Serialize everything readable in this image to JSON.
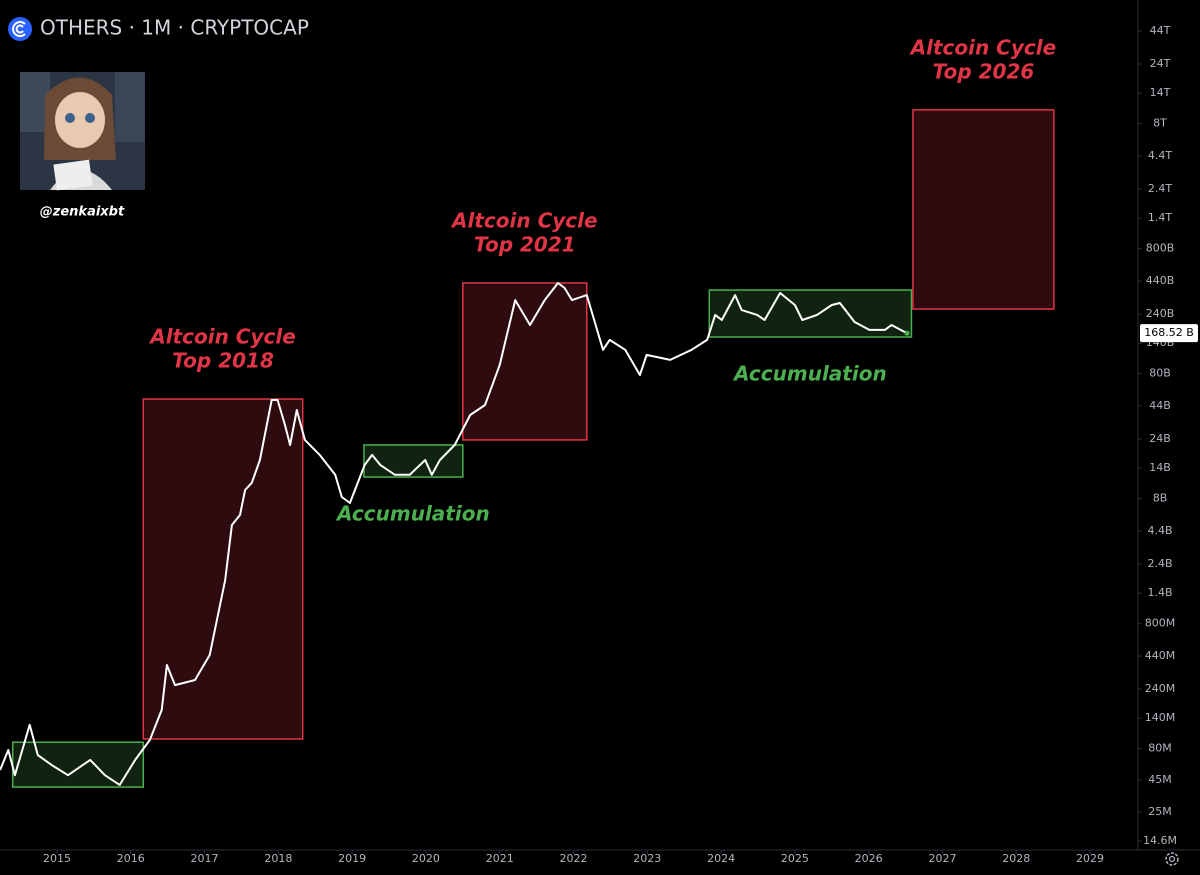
{
  "chart_data": {
    "type": "line",
    "title": "OTHERS · 1M · CRYPTOCAP",
    "author": "@zenkaixbt",
    "color": "#ffffff",
    "log_y": true,
    "xlim": [
      2014.228,
      2029.65
    ],
    "ylim": [
      12360000,
      78000000000000
    ],
    "xticks": [
      2015,
      2016,
      2017,
      2018,
      2019,
      2020,
      2021,
      2022,
      2023,
      2024,
      2025,
      2026,
      2027,
      2028,
      2029
    ],
    "yticks": [
      {
        "value": 14600000,
        "label": "14.6M"
      },
      {
        "value": 25000000,
        "label": "25M"
      },
      {
        "value": 45000000,
        "label": "45M"
      },
      {
        "value": 80000000,
        "label": "80M"
      },
      {
        "value": 140000000,
        "label": "140M"
      },
      {
        "value": 240000000,
        "label": "240M"
      },
      {
        "value": 440000000,
        "label": "440M"
      },
      {
        "value": 800000000,
        "label": "800M"
      },
      {
        "value": 1400000000,
        "label": "1.4B"
      },
      {
        "value": 2400000000,
        "label": "2.4B"
      },
      {
        "value": 4400000000,
        "label": "4.4B"
      },
      {
        "value": 8000000000,
        "label": "8B"
      },
      {
        "value": 14000000000,
        "label": "14B"
      },
      {
        "value": 24000000000,
        "label": "24B"
      },
      {
        "value": 44000000000,
        "label": "44B"
      },
      {
        "value": 80000000000,
        "label": "80B"
      },
      {
        "value": 140000000000,
        "label": "140B"
      },
      {
        "value": 240000000000,
        "label": "240B"
      },
      {
        "value": 440000000000,
        "label": "440B"
      },
      {
        "value": 800000000000,
        "label": "800B"
      },
      {
        "value": 1400000000000,
        "label": "1.4T"
      },
      {
        "value": 2400000000000,
        "label": "2.4T"
      },
      {
        "value": 4400000000000,
        "label": "4.4T"
      },
      {
        "value": 8000000000000,
        "label": "8T"
      },
      {
        "value": 14000000000000,
        "label": "14T"
      },
      {
        "value": 24000000000000,
        "label": "24T"
      },
      {
        "value": 44000000000000,
        "label": "44T"
      }
    ],
    "x": [
      2014.23,
      2014.34,
      2014.43,
      2014.63,
      2014.74,
      2014.93,
      2015.15,
      2015.45,
      2015.65,
      2015.85,
      2016.06,
      2016.26,
      2016.42,
      2016.49,
      2016.6,
      2016.87,
      2017.07,
      2017.28,
      2017.37,
      2017.48,
      2017.55,
      2017.64,
      2017.75,
      2017.91,
      2017.99,
      2018.09,
      2018.16,
      2018.25,
      2018.36,
      2018.56,
      2018.77,
      2018.86,
      2018.97,
      2019.17,
      2019.27,
      2019.38,
      2019.58,
      2019.78,
      2019.99,
      2020.08,
      2020.19,
      2020.39,
      2020.6,
      2020.8,
      2021.0,
      2021.21,
      2021.41,
      2021.61,
      2021.79,
      2021.88,
      2021.98,
      2022.18,
      2022.4,
      2022.49,
      2022.7,
      2022.9,
      2022.99,
      2023.31,
      2023.6,
      2023.81,
      2023.92,
      2024.01,
      2024.19,
      2024.28,
      2024.49,
      2024.59,
      2024.8,
      2025.0,
      2025.1,
      2025.3,
      2025.5,
      2025.61,
      2025.81,
      2026.01,
      2026.22,
      2026.31,
      2026.52
    ],
    "values": [
      54000000,
      78000000,
      49000000,
      124000000,
      71000000,
      59000000,
      49000000,
      65000000,
      49000000,
      41000000,
      65000000,
      94000000,
      163000000,
      373000000,
      258000000,
      283000000,
      449000000,
      1790000000,
      4920000000,
      5920000000,
      9380000000,
      10700000000,
      16300000000,
      49200000000,
      49200000000,
      31000000000,
      21500000000,
      40900000000,
      23600000000,
      17900000000,
      12400000000,
      8240000000,
      7380000000,
      14900000000,
      17900000000,
      14900000000,
      12400000000,
      12400000000,
      16300000000,
      12400000000,
      16300000000,
      21500000000,
      37300000000,
      44900000000,
      93800000000,
      310000000000,
      196000000000,
      310000000000,
      425000000000,
      387000000000,
      310000000000,
      340000000000,
      124000000000,
      149000000000,
      124000000000,
      78000000000,
      113000000000,
      103000000000,
      124000000000,
      149000000000,
      236000000000,
      215000000000,
      340000000000,
      258000000000,
      236000000000,
      215000000000,
      353000000000,
      283000000000,
      215000000000,
      236000000000,
      283000000000,
      294000000000,
      207000000000,
      179000000000,
      179000000000,
      196000000000,
      168520000000
    ],
    "price_marker": {
      "value": 168520000000,
      "label": "168.52 B"
    },
    "annotations": [
      {
        "x": [
          2014.4,
          2016.17
        ],
        "y": [
          39400000,
          90000000
        ],
        "color": "#4caf50"
      },
      {
        "x": [
          2016.17,
          2018.33
        ],
        "y": [
          95500000,
          50100000000
        ],
        "color": "#e03546",
        "lines": [
          "Altcoin Cycle",
          "Top 2018"
        ],
        "label_position": "above"
      },
      {
        "x": [
          2019.16,
          2020.5
        ],
        "y": [
          11900000000,
          21500000000
        ],
        "color": "#4caf50",
        "lines": [
          "Accumulation"
        ],
        "label_position": "below"
      },
      {
        "x": [
          2020.5,
          2022.18
        ],
        "y": [
          23600000000,
          425000000000
        ],
        "color": "#e03546",
        "lines": [
          "Altcoin Cycle",
          "Top 2021"
        ],
        "label_position": "above"
      },
      {
        "x": [
          2023.84,
          2026.58
        ],
        "y": [
          157000000000,
          373000000000
        ],
        "color": "#4caf50",
        "lines": [
          "Accumulation"
        ],
        "label_position": "below"
      },
      {
        "x": [
          2026.6,
          2028.51
        ],
        "y": [
          263000000000,
          10300000000000
        ],
        "color": "#e03546",
        "lines": [
          "Altcoin Cycle",
          "Top 2026"
        ],
        "label_position": "above"
      }
    ]
  }
}
